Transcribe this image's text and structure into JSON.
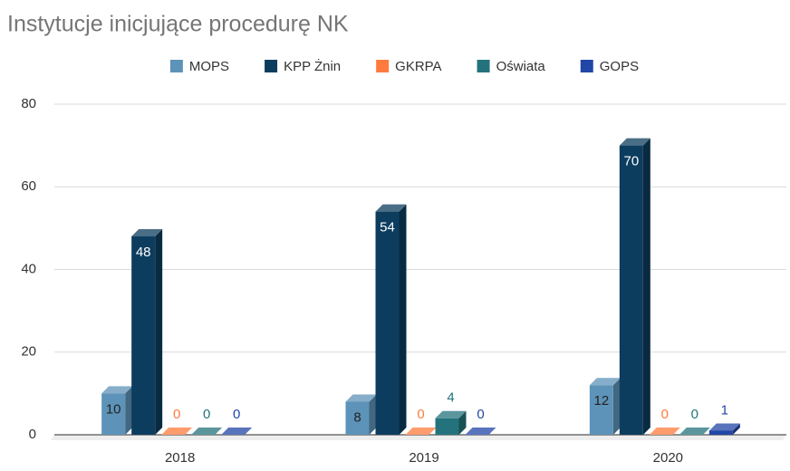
{
  "chart_data": {
    "type": "bar3d",
    "title": "Instytucje inicjujące procedurę NK",
    "categories": [
      "2018",
      "2019",
      "2020"
    ],
    "series": [
      {
        "name": "MOPS",
        "color": "#5d93b8",
        "values": [
          10,
          8,
          12
        ]
      },
      {
        "name": "KPP Żnin",
        "color": "#0d3d5e",
        "values": [
          48,
          54,
          70
        ]
      },
      {
        "name": "GKRPA",
        "color": "#ff7b3d",
        "values": [
          0,
          0,
          0
        ]
      },
      {
        "name": "Oświata",
        "color": "#24737c",
        "values": [
          0,
          4,
          0
        ]
      },
      {
        "name": "GOPS",
        "color": "#2146a6",
        "values": [
          0,
          0,
          1
        ]
      }
    ],
    "ylim": [
      0,
      80
    ],
    "yticks": [
      0,
      20,
      40,
      60,
      80
    ],
    "grid": true,
    "legend": "top"
  }
}
